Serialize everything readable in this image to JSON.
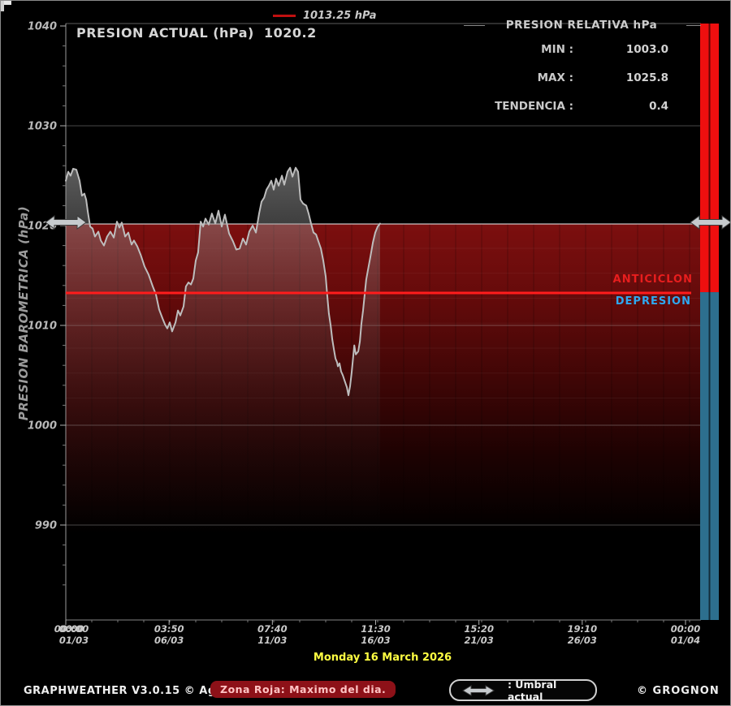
{
  "window": {
    "bg": "#000000",
    "frame_color": "#8a8a8a"
  },
  "header": {
    "title_label": "PRESION ACTUAL (hPa)",
    "title_value": "1020.2",
    "legend": {
      "label": "1013.25 hPa",
      "line_color": "#c01010"
    }
  },
  "stats_panel": {
    "title": "PRESION RELATIVA hPa",
    "rows": [
      {
        "label": "MIN :",
        "value": "1003.0"
      },
      {
        "label": "MAX :",
        "value": "1025.8"
      },
      {
        "label": "TENDENCIA :",
        "value": "0.4"
      }
    ]
  },
  "zone_labels": {
    "upper": "ANTICICLON",
    "upper_color": "#e81e1e",
    "lower": "DEPRESION",
    "lower_color": "#2fa8f0"
  },
  "date_banner": "Monday 16 March 2026",
  "footer": {
    "credit": "GRAPHWEATHER V3.0.15 © Aguilmard",
    "badge": "Zona Roja: Maximo del dia.",
    "umbral": ": Umbral actual",
    "author": "© GROGNON"
  },
  "colors": {
    "threshold_red": "#ff1c1c",
    "bar_red": "#ee0f0f",
    "bar_teal": "#2d6f8e",
    "curve": "#bdbdbd",
    "red_zone_top": "#7c0f0f"
  },
  "chart_data": {
    "type": "area",
    "title": "PRESION ACTUAL (hPa) 1020.2",
    "ylabel": "PRESION BAROMETRICA (hPa)",
    "unit": "hPa",
    "ylim": [
      980,
      1040
    ],
    "yticks": [
      990,
      1000,
      1010,
      1020,
      1030,
      1040
    ],
    "x_axis_days": 31,
    "xticks": [
      {
        "time": "00:00",
        "date": "01/03"
      },
      {
        "time": "03:50",
        "date": "06/03"
      },
      {
        "time": "07:40",
        "date": "11/03"
      },
      {
        "time": "11:30",
        "date": "16/03"
      },
      {
        "time": "15:20",
        "date": "21/03"
      },
      {
        "time": "19:10",
        "date": "26/03"
      },
      {
        "time": "00:00",
        "date": "01/04"
      }
    ],
    "reference_line_hpa": 1013.25,
    "umbral_hpa": 1020,
    "red_zone_from_hpa": 1020,
    "stats": {
      "min": 1003.0,
      "max": 1025.8,
      "tendencia": 0.4,
      "current": 1020.2
    },
    "series": [
      {
        "name": "PRESION ACTUAL",
        "points": [
          [
            0.0,
            1024.5
          ],
          [
            0.12,
            1025.4
          ],
          [
            0.24,
            1025.0
          ],
          [
            0.37,
            1025.7
          ],
          [
            0.53,
            1025.6
          ],
          [
            0.69,
            1024.5
          ],
          [
            0.81,
            1023.0
          ],
          [
            0.93,
            1023.2
          ],
          [
            1.02,
            1022.6
          ],
          [
            1.1,
            1021.4
          ],
          [
            1.22,
            1019.9
          ],
          [
            1.34,
            1019.7
          ],
          [
            1.46,
            1018.9
          ],
          [
            1.63,
            1019.4
          ],
          [
            1.75,
            1018.5
          ],
          [
            1.91,
            1018.0
          ],
          [
            2.07,
            1018.9
          ],
          [
            2.23,
            1019.4
          ],
          [
            2.4,
            1018.8
          ],
          [
            2.56,
            1020.4
          ],
          [
            2.68,
            1019.8
          ],
          [
            2.8,
            1020.3
          ],
          [
            2.97,
            1018.9
          ],
          [
            3.13,
            1019.3
          ],
          [
            3.29,
            1018.1
          ],
          [
            3.41,
            1018.5
          ],
          [
            3.58,
            1017.9
          ],
          [
            3.74,
            1017.1
          ],
          [
            3.94,
            1015.9
          ],
          [
            4.14,
            1015.1
          ],
          [
            4.35,
            1013.9
          ],
          [
            4.51,
            1013.1
          ],
          [
            4.67,
            1011.6
          ],
          [
            4.84,
            1010.7
          ],
          [
            4.96,
            1010.1
          ],
          [
            5.08,
            1009.7
          ],
          [
            5.2,
            1010.3
          ],
          [
            5.32,
            1009.4
          ],
          [
            5.49,
            1010.3
          ],
          [
            5.61,
            1011.5
          ],
          [
            5.73,
            1011.0
          ],
          [
            5.89,
            1011.9
          ],
          [
            6.01,
            1013.9
          ],
          [
            6.14,
            1014.3
          ],
          [
            6.26,
            1014.1
          ],
          [
            6.38,
            1014.7
          ],
          [
            6.5,
            1016.5
          ],
          [
            6.62,
            1017.3
          ],
          [
            6.75,
            1020.4
          ],
          [
            6.87,
            1019.9
          ],
          [
            6.99,
            1020.7
          ],
          [
            7.15,
            1020.1
          ],
          [
            7.31,
            1021.2
          ],
          [
            7.48,
            1020.2
          ],
          [
            7.64,
            1021.5
          ],
          [
            7.8,
            1019.9
          ],
          [
            7.96,
            1021.1
          ],
          [
            8.17,
            1019.2
          ],
          [
            8.37,
            1018.4
          ],
          [
            8.53,
            1017.6
          ],
          [
            8.7,
            1017.7
          ],
          [
            8.86,
            1018.7
          ],
          [
            9.02,
            1018.1
          ],
          [
            9.18,
            1019.4
          ],
          [
            9.35,
            1020.0
          ],
          [
            9.51,
            1019.3
          ],
          [
            9.67,
            1021.2
          ],
          [
            9.79,
            1022.4
          ],
          [
            9.92,
            1022.8
          ],
          [
            10.04,
            1023.6
          ],
          [
            10.16,
            1024.0
          ],
          [
            10.28,
            1024.5
          ],
          [
            10.4,
            1023.6
          ],
          [
            10.52,
            1024.7
          ],
          [
            10.65,
            1024.0
          ],
          [
            10.81,
            1025.0
          ],
          [
            10.93,
            1024.1
          ],
          [
            11.09,
            1025.4
          ],
          [
            11.22,
            1025.8
          ],
          [
            11.34,
            1024.9
          ],
          [
            11.5,
            1025.8
          ],
          [
            11.62,
            1025.4
          ],
          [
            11.74,
            1022.6
          ],
          [
            11.87,
            1022.2
          ],
          [
            12.03,
            1022.0
          ],
          [
            12.15,
            1021.2
          ],
          [
            12.27,
            1020.2
          ],
          [
            12.39,
            1019.3
          ],
          [
            12.52,
            1019.1
          ],
          [
            12.64,
            1018.4
          ],
          [
            12.76,
            1017.7
          ],
          [
            12.88,
            1016.5
          ],
          [
            13.0,
            1014.9
          ],
          [
            13.08,
            1013.0
          ],
          [
            13.16,
            1011.2
          ],
          [
            13.25,
            1010.0
          ],
          [
            13.33,
            1008.6
          ],
          [
            13.41,
            1007.6
          ],
          [
            13.49,
            1006.7
          ],
          [
            13.57,
            1006.3
          ],
          [
            13.61,
            1005.9
          ],
          [
            13.69,
            1006.2
          ],
          [
            13.77,
            1005.4
          ],
          [
            13.86,
            1005.0
          ],
          [
            13.94,
            1004.5
          ],
          [
            14.06,
            1003.8
          ],
          [
            14.14,
            1003.0
          ],
          [
            14.22,
            1003.9
          ],
          [
            14.3,
            1005.3
          ],
          [
            14.43,
            1008.0
          ],
          [
            14.51,
            1007.1
          ],
          [
            14.63,
            1007.4
          ],
          [
            14.71,
            1008.4
          ],
          [
            14.79,
            1010.2
          ],
          [
            14.87,
            1011.5
          ],
          [
            14.95,
            1013.1
          ],
          [
            15.03,
            1014.6
          ],
          [
            15.11,
            1015.5
          ],
          [
            15.24,
            1016.9
          ],
          [
            15.36,
            1018.3
          ],
          [
            15.48,
            1019.3
          ],
          [
            15.6,
            1019.9
          ],
          [
            15.72,
            1020.2
          ]
        ]
      }
    ]
  }
}
